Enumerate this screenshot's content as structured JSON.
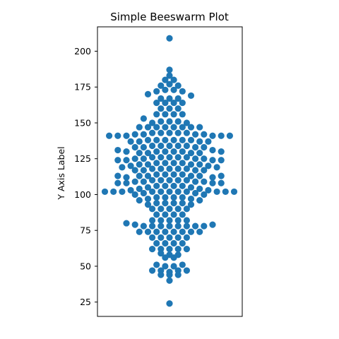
{
  "chart_data": {
    "type": "scatter",
    "title": "Simple Beeswarm Plot",
    "ylabel": "Y Axis Label",
    "xlabel": "",
    "ylim": [
      15,
      217
    ],
    "yticks": [
      25,
      50,
      75,
      100,
      125,
      150,
      175,
      200
    ],
    "color": "#1f77b4",
    "grid": false,
    "series": [
      {
        "points": [
          [
            0,
            209
          ],
          [
            0,
            187
          ],
          [
            0,
            183
          ],
          [
            -0.5,
            180
          ],
          [
            0.5,
            180
          ],
          [
            -1,
            176
          ],
          [
            0,
            177
          ],
          [
            1,
            176
          ],
          [
            -1.5,
            172
          ],
          [
            -0.5,
            173
          ],
          [
            0.5,
            173
          ],
          [
            1.5,
            172
          ],
          [
            -2.5,
            170
          ],
          [
            2.5,
            169
          ],
          [
            -1,
            167
          ],
          [
            0,
            167
          ],
          [
            1,
            167
          ],
          [
            -1.5,
            164
          ],
          [
            -0.5,
            164
          ],
          [
            0.5,
            164
          ],
          [
            1.5,
            164
          ],
          [
            -1,
            160
          ],
          [
            0,
            160
          ],
          [
            1,
            160
          ],
          [
            -3,
            153
          ],
          [
            -1.5,
            156
          ],
          [
            -0.5,
            156
          ],
          [
            0.5,
            156
          ],
          [
            1.5,
            156
          ],
          [
            -2,
            150
          ],
          [
            -1,
            151
          ],
          [
            0,
            151
          ],
          [
            1,
            151
          ],
          [
            2,
            150
          ],
          [
            -3.5,
            147
          ],
          [
            -2.5,
            147
          ],
          [
            -1.5,
            147
          ],
          [
            -0.5,
            147
          ],
          [
            0.5,
            147
          ],
          [
            1.5,
            147
          ],
          [
            2.5,
            147
          ],
          [
            3.5,
            147
          ],
          [
            -7,
            141
          ],
          [
            -6,
            141
          ],
          [
            -5,
            141
          ],
          [
            -4,
            142
          ],
          [
            -3,
            142
          ],
          [
            -2,
            143
          ],
          [
            -1,
            143
          ],
          [
            0,
            143
          ],
          [
            1,
            143
          ],
          [
            2,
            143
          ],
          [
            3,
            142
          ],
          [
            4,
            142
          ],
          [
            5,
            141
          ],
          [
            6,
            141
          ],
          [
            7,
            141
          ],
          [
            -4.5,
            137
          ],
          [
            -3.5,
            137
          ],
          [
            -2.5,
            138
          ],
          [
            -1.5,
            138
          ],
          [
            -0.5,
            138
          ],
          [
            0.5,
            138
          ],
          [
            1.5,
            138
          ],
          [
            2.5,
            138
          ],
          [
            3.5,
            137
          ],
          [
            4.5,
            137
          ],
          [
            -6,
            131
          ],
          [
            -5,
            130
          ],
          [
            -4,
            133
          ],
          [
            -3,
            133
          ],
          [
            -2,
            134
          ],
          [
            -1,
            134
          ],
          [
            0,
            134
          ],
          [
            1,
            134
          ],
          [
            2,
            134
          ],
          [
            3,
            133
          ],
          [
            4,
            133
          ],
          [
            5,
            131
          ],
          [
            6,
            130
          ],
          [
            -3.5,
            129
          ],
          [
            -2.5,
            129
          ],
          [
            -1.5,
            130
          ],
          [
            -0.5,
            130
          ],
          [
            0.5,
            130
          ],
          [
            1.5,
            130
          ],
          [
            2.5,
            129
          ],
          [
            3.5,
            129
          ],
          [
            -6,
            124
          ],
          [
            -5,
            124
          ],
          [
            -4,
            125
          ],
          [
            -3,
            125
          ],
          [
            -2,
            126
          ],
          [
            -1,
            126
          ],
          [
            0,
            126
          ],
          [
            1,
            126
          ],
          [
            2,
            126
          ],
          [
            3,
            125
          ],
          [
            4,
            125
          ],
          [
            5,
            124
          ],
          [
            6,
            124
          ],
          [
            -5.5,
            119
          ],
          [
            -4.5,
            120
          ],
          [
            -3.5,
            121
          ],
          [
            -2.5,
            121
          ],
          [
            -1.5,
            122
          ],
          [
            -0.5,
            122
          ],
          [
            0.5,
            122
          ],
          [
            1.5,
            122
          ],
          [
            2.5,
            121
          ],
          [
            3.5,
            121
          ],
          [
            4.5,
            120
          ],
          [
            5.5,
            119
          ],
          [
            -4,
            117
          ],
          [
            -3,
            117
          ],
          [
            -2,
            118
          ],
          [
            -1,
            118
          ],
          [
            0,
            118
          ],
          [
            1,
            118
          ],
          [
            2,
            118
          ],
          [
            3,
            117
          ],
          [
            4,
            117
          ],
          [
            -6,
            113
          ],
          [
            -5,
            112
          ],
          [
            -3.5,
            113
          ],
          [
            -2.5,
            113
          ],
          [
            -1.5,
            114
          ],
          [
            -0.5,
            114
          ],
          [
            0.5,
            114
          ],
          [
            1.5,
            114
          ],
          [
            2.5,
            113
          ],
          [
            3.5,
            113
          ],
          [
            5,
            112
          ],
          [
            6,
            113
          ],
          [
            -6,
            108
          ],
          [
            -5,
            108
          ],
          [
            -4,
            109
          ],
          [
            -3,
            109
          ],
          [
            -2,
            110
          ],
          [
            -1,
            110
          ],
          [
            0,
            110
          ],
          [
            1,
            110
          ],
          [
            2,
            110
          ],
          [
            3,
            109
          ],
          [
            4,
            109
          ],
          [
            5,
            108
          ],
          [
            6,
            108
          ],
          [
            -7.5,
            102
          ],
          [
            -6.5,
            102
          ],
          [
            -5.5,
            102
          ],
          [
            -4.5,
            103
          ],
          [
            -3.5,
            104
          ],
          [
            -2.5,
            105
          ],
          [
            -1.5,
            106
          ],
          [
            -0.5,
            106
          ],
          [
            0.5,
            106
          ],
          [
            1.5,
            106
          ],
          [
            2.5,
            105
          ],
          [
            3.5,
            104
          ],
          [
            4.5,
            103
          ],
          [
            5.5,
            102
          ],
          [
            6.5,
            102
          ],
          [
            7.5,
            102
          ],
          [
            -4,
            100
          ],
          [
            -3,
            101
          ],
          [
            -2,
            102
          ],
          [
            -1,
            102
          ],
          [
            0,
            102
          ],
          [
            1,
            102
          ],
          [
            2,
            102
          ],
          [
            3,
            101
          ],
          [
            4,
            100
          ],
          [
            -3.5,
            96
          ],
          [
            -2.5,
            97
          ],
          [
            -1.5,
            98
          ],
          [
            -0.5,
            98
          ],
          [
            0.5,
            98
          ],
          [
            1.5,
            98
          ],
          [
            2.5,
            97
          ],
          [
            3.5,
            96
          ],
          [
            -2.5,
            93
          ],
          [
            -1.5,
            94
          ],
          [
            -0.5,
            94
          ],
          [
            0.5,
            94
          ],
          [
            1.5,
            94
          ],
          [
            2.5,
            93
          ],
          [
            -2,
            90
          ],
          [
            -1,
            90
          ],
          [
            0,
            90
          ],
          [
            1,
            90
          ],
          [
            2,
            90
          ],
          [
            -1.5,
            86
          ],
          [
            -0.5,
            86
          ],
          [
            0.5,
            86
          ],
          [
            1.5,
            86
          ],
          [
            -2,
            82
          ],
          [
            -1,
            82
          ],
          [
            0,
            82
          ],
          [
            1,
            82
          ],
          [
            2,
            82
          ],
          [
            -5,
            80
          ],
          [
            -4,
            79
          ],
          [
            -3,
            78
          ],
          [
            -2,
            78
          ],
          [
            -1,
            78
          ],
          [
            0,
            78
          ],
          [
            1,
            78
          ],
          [
            2,
            78
          ],
          [
            3,
            78
          ],
          [
            4,
            78
          ],
          [
            5,
            79
          ],
          [
            -3.5,
            74
          ],
          [
            -2.5,
            74
          ],
          [
            -1.5,
            74
          ],
          [
            -0.5,
            74
          ],
          [
            0.5,
            74
          ],
          [
            1.5,
            74
          ],
          [
            2.5,
            74
          ],
          [
            3.5,
            74
          ],
          [
            -2,
            70
          ],
          [
            -1,
            70
          ],
          [
            0,
            70
          ],
          [
            1,
            70
          ],
          [
            2,
            70
          ],
          [
            -1.5,
            66
          ],
          [
            -0.5,
            66
          ],
          [
            0.5,
            66
          ],
          [
            1.5,
            66
          ],
          [
            -2,
            62
          ],
          [
            -1,
            62
          ],
          [
            0,
            62
          ],
          [
            1,
            62
          ],
          [
            2,
            62
          ],
          [
            -1,
            59
          ],
          [
            0,
            58
          ],
          [
            1,
            58
          ],
          [
            -0.5,
            56
          ],
          [
            0.5,
            56
          ],
          [
            -1.5,
            51
          ],
          [
            -0.5,
            50
          ],
          [
            0.5,
            50
          ],
          [
            1.5,
            51
          ],
          [
            -2,
            47
          ],
          [
            -1,
            47
          ],
          [
            0,
            46
          ],
          [
            1,
            47
          ],
          [
            2,
            47
          ],
          [
            -1,
            44
          ],
          [
            0,
            44
          ],
          [
            1,
            44
          ],
          [
            0,
            40
          ],
          [
            0,
            24
          ]
        ]
      }
    ]
  }
}
